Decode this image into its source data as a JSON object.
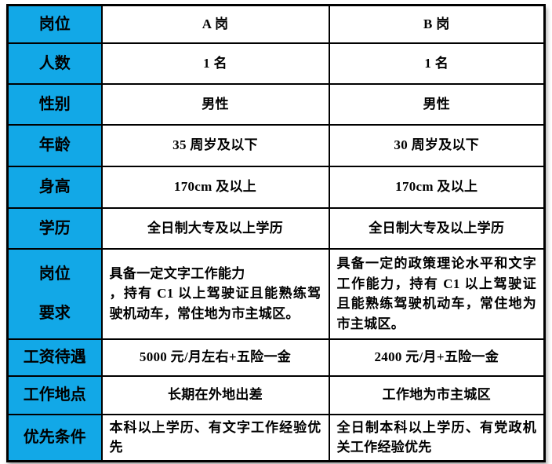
{
  "colors": {
    "header_bg": "#12A8E7",
    "border": "#000000"
  },
  "table": {
    "columns": [
      "label",
      "a",
      "b"
    ],
    "rows": [
      {
        "label": "岗位",
        "a": "A 岗",
        "b": "B 岗"
      },
      {
        "label": "人数",
        "a": "1 名",
        "b": "1 名"
      },
      {
        "label": "性别",
        "a": "男性",
        "b": "男性"
      },
      {
        "label": "年龄",
        "a": "35 周岁及以下",
        "b": "30 周岁及以下"
      },
      {
        "label": "身高",
        "a": "170cm 及以上",
        "b": "170cm 及以上"
      },
      {
        "label": "学历",
        "a": "全日制大专及以上学历",
        "b": "全日制大专及以上学历"
      },
      {
        "label": "岗位\n要求",
        "a": "具备一定文字工作能力\n，持有 C1 以上驾驶证且能熟练驾驶机动车，常住地为市主城区。",
        "b": "具备一定的政策理论水平和文字工作能力，持有 C1 以上驾驶证且能熟练驾驶机动车，常住地为市主城区。"
      },
      {
        "label": "工资待遇",
        "a": "5000 元/月左右+五险一金",
        "b": "2400 元/月+五险一金"
      },
      {
        "label": "工作地点",
        "a": "长期在外地出差",
        "b": "工作地为市主城区"
      },
      {
        "label": "优先条件",
        "a": "本科以上学历、有文字工作经验优先",
        "b": "全日制本科以上学历、有党政机关工作经验优先"
      }
    ]
  }
}
